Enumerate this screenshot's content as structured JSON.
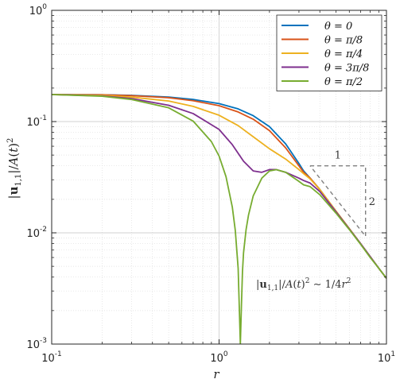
{
  "chart_data": {
    "type": "line",
    "xscale": "log",
    "yscale": "log",
    "xlim": [
      0.1,
      10
    ],
    "ylim": [
      0.001,
      1
    ],
    "xlabel": "r",
    "ylabel": "|u1,1|/A(t)^2",
    "grid": true,
    "legend_position": "top-right",
    "x_ticks": [
      {
        "base": "10",
        "exp": "-1",
        "value": 0.1
      },
      {
        "base": "10",
        "exp": "0",
        "value": 1
      },
      {
        "base": "10",
        "exp": "1",
        "value": 10
      }
    ],
    "y_ticks": [
      {
        "base": "10",
        "exp": "0",
        "value": 1
      },
      {
        "base": "10",
        "exp": "-1",
        "value": 0.1
      },
      {
        "base": "10",
        "exp": "-2",
        "value": 0.01
      },
      {
        "base": "10",
        "exp": "-3",
        "value": 0.001
      }
    ],
    "series": [
      {
        "name": "θ = 0",
        "color": "#0072BD",
        "x": [
          0.1,
          0.2,
          0.3,
          0.5,
          0.7,
          1.0,
          1.3,
          1.6,
          2.0,
          2.5,
          3.0,
          3.2,
          3.5,
          4,
          5,
          6,
          7,
          8,
          9,
          10
        ],
        "y": [
          0.175,
          0.174,
          0.172,
          0.166,
          0.158,
          0.145,
          0.13,
          0.113,
          0.09,
          0.063,
          0.042,
          0.036,
          0.031,
          0.0245,
          0.0156,
          0.0109,
          0.008,
          0.0061,
          0.0048,
          0.0039
        ]
      },
      {
        "name": "θ = π/8",
        "color": "#D95319",
        "x": [
          0.1,
          0.2,
          0.3,
          0.5,
          0.7,
          1.0,
          1.3,
          1.6,
          2.0,
          2.5,
          3.0,
          3.2,
          3.5,
          4,
          5,
          6,
          7,
          8,
          9,
          10
        ],
        "y": [
          0.175,
          0.174,
          0.171,
          0.164,
          0.154,
          0.139,
          0.122,
          0.105,
          0.083,
          0.058,
          0.04,
          0.035,
          0.031,
          0.0245,
          0.0156,
          0.0109,
          0.008,
          0.0061,
          0.0048,
          0.0039
        ]
      },
      {
        "name": "θ = π/4",
        "color": "#EDB120",
        "x": [
          0.1,
          0.2,
          0.3,
          0.5,
          0.7,
          1.0,
          1.3,
          1.6,
          2.0,
          2.5,
          3.0,
          3.2,
          3.5,
          4,
          5,
          6,
          7,
          8,
          9,
          10
        ],
        "y": [
          0.175,
          0.172,
          0.166,
          0.153,
          0.137,
          0.114,
          0.092,
          0.073,
          0.057,
          0.046,
          0.037,
          0.034,
          0.0305,
          0.0245,
          0.0156,
          0.0109,
          0.008,
          0.0061,
          0.0048,
          0.0039
        ]
      },
      {
        "name": "θ = 3π/8",
        "color": "#7E2F8E",
        "x": [
          0.1,
          0.2,
          0.3,
          0.5,
          0.7,
          1.0,
          1.2,
          1.4,
          1.6,
          1.8,
          2.0,
          2.2,
          2.5,
          3.0,
          3.2,
          3.5,
          4,
          5,
          6,
          7,
          8,
          9,
          10
        ],
        "y": [
          0.175,
          0.17,
          0.161,
          0.14,
          0.118,
          0.085,
          0.062,
          0.044,
          0.036,
          0.035,
          0.037,
          0.037,
          0.035,
          0.031,
          0.0295,
          0.028,
          0.0235,
          0.0154,
          0.0108,
          0.008,
          0.0061,
          0.0048,
          0.0039
        ]
      },
      {
        "name": "θ = π/2",
        "color": "#77AC30",
        "x": [
          0.1,
          0.2,
          0.3,
          0.5,
          0.7,
          0.9,
          1.0,
          1.1,
          1.2,
          1.25,
          1.3,
          1.32,
          1.34,
          1.36,
          1.38,
          1.4,
          1.45,
          1.5,
          1.6,
          1.8,
          2.0,
          2.2,
          2.5,
          3.0,
          3.2,
          3.5,
          4,
          5,
          6,
          7,
          8,
          9,
          10
        ],
        "y": [
          0.175,
          0.169,
          0.158,
          0.133,
          0.101,
          0.066,
          0.049,
          0.032,
          0.017,
          0.0105,
          0.0048,
          0.0022,
          0.001,
          0.0022,
          0.0045,
          0.0066,
          0.0107,
          0.0145,
          0.0215,
          0.031,
          0.036,
          0.037,
          0.035,
          0.029,
          0.027,
          0.026,
          0.022,
          0.015,
          0.0107,
          0.0079,
          0.006,
          0.0048,
          0.0039
        ]
      }
    ],
    "slope_triangle": {
      "color": "#808080",
      "horizontal_label": "1",
      "vertical_label": "2",
      "vertices": [
        [
          3.5,
          0.04
        ],
        [
          7.5,
          0.04
        ],
        [
          7.5,
          0.0093
        ]
      ]
    },
    "annotation": "|u1,1|/A(t)^2 ~ 1/4r^2"
  }
}
